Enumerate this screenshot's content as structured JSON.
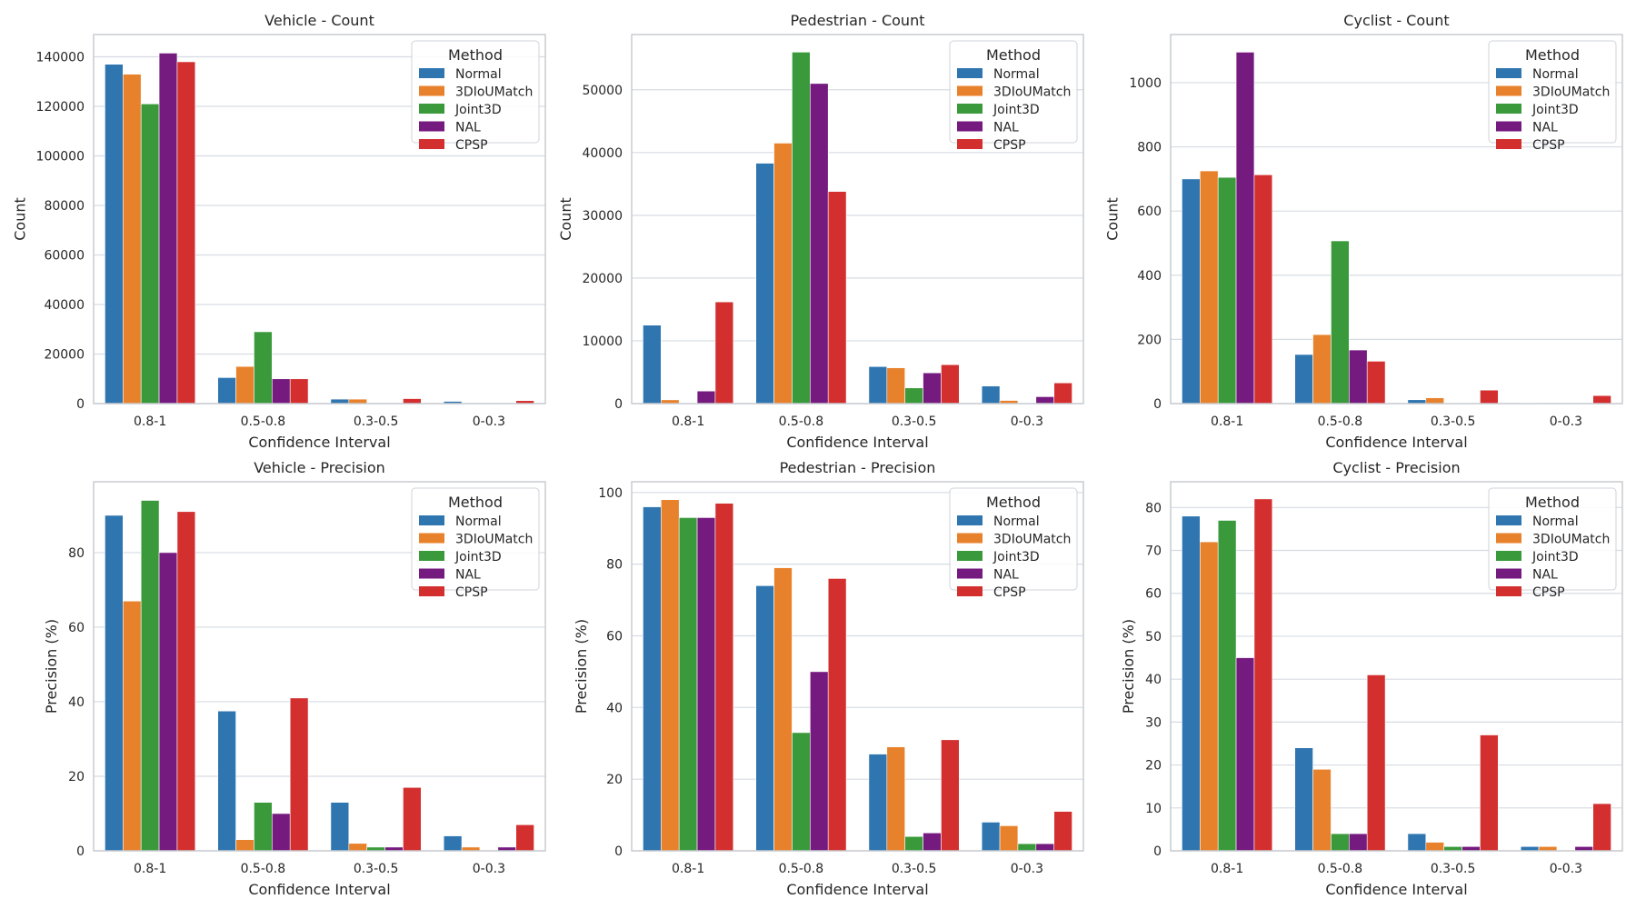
{
  "colors": {
    "Normal": "#2f75b0",
    "3DIoUMatch": "#e8812b",
    "Joint3D": "#3a9a3b",
    "NAL": "#751a7e",
    "CPSP": "#d32f2f",
    "grid": "#d6dce3",
    "frame": "#c8ccd1"
  },
  "chart_data": [
    {
      "type": "bar",
      "title": "Vehicle - Count",
      "xlabel": "Confidence Interval",
      "ylabel": "Count",
      "categories": [
        "0.8-1",
        "0.5-0.8",
        "0.3-0.5",
        "0-0.3"
      ],
      "ylim": [
        0,
        149000
      ],
      "yticks": [
        0,
        20000,
        40000,
        60000,
        80000,
        100000,
        120000,
        140000
      ],
      "legend_title": "Method",
      "legend_position": "top-right",
      "series": [
        {
          "name": "Normal",
          "values": [
            137000,
            10500,
            1800,
            900
          ]
        },
        {
          "name": "3DIoUMatch",
          "values": [
            133000,
            15000,
            1800,
            200
          ]
        },
        {
          "name": "Joint3D",
          "values": [
            121000,
            29000,
            200,
            100
          ]
        },
        {
          "name": "NAL",
          "values": [
            141500,
            10000,
            200,
            100
          ]
        },
        {
          "name": "CPSP",
          "values": [
            138000,
            10000,
            2000,
            1200
          ]
        }
      ]
    },
    {
      "type": "bar",
      "title": "Pedestrian - Count",
      "xlabel": "Confidence Interval",
      "ylabel": "Count",
      "categories": [
        "0.8-1",
        "0.5-0.8",
        "0.3-0.5",
        "0-0.3"
      ],
      "ylim": [
        0,
        58800
      ],
      "yticks": [
        0,
        10000,
        20000,
        30000,
        40000,
        50000
      ],
      "legend_title": "Method",
      "legend_position": "top-right",
      "series": [
        {
          "name": "Normal",
          "values": [
            12500,
            38300,
            5900,
            2800
          ]
        },
        {
          "name": "3DIoUMatch",
          "values": [
            600,
            41500,
            5700,
            500
          ]
        },
        {
          "name": "Joint3D",
          "values": [
            100,
            56000,
            2500,
            100
          ]
        },
        {
          "name": "NAL",
          "values": [
            2000,
            51000,
            4900,
            1100
          ]
        },
        {
          "name": "CPSP",
          "values": [
            16200,
            33800,
            6200,
            3300
          ]
        }
      ]
    },
    {
      "type": "bar",
      "title": "Cyclist - Count",
      "xlabel": "Confidence Interval",
      "ylabel": "Count",
      "categories": [
        "0.8-1",
        "0.5-0.8",
        "0.3-0.5",
        "0-0.3"
      ],
      "ylim": [
        0,
        1150
      ],
      "yticks": [
        0,
        200,
        400,
        600,
        800,
        1000
      ],
      "legend_title": "Method",
      "legend_position": "top-right",
      "series": [
        {
          "name": "Normal",
          "values": [
            700,
            153,
            12,
            2
          ]
        },
        {
          "name": "3DIoUMatch",
          "values": [
            725,
            215,
            18,
            1
          ]
        },
        {
          "name": "Joint3D",
          "values": [
            705,
            507,
            2,
            1
          ]
        },
        {
          "name": "NAL",
          "values": [
            1095,
            167,
            2,
            1
          ]
        },
        {
          "name": "CPSP",
          "values": [
            713,
            132,
            42,
            25
          ]
        }
      ]
    },
    {
      "type": "bar",
      "title": "Vehicle - Precision",
      "xlabel": "Confidence Interval",
      "ylabel": "Precision (%)",
      "categories": [
        "0.8-1",
        "0.5-0.8",
        "0.3-0.5",
        "0-0.3"
      ],
      "ylim": [
        0,
        99
      ],
      "yticks": [
        0,
        20,
        40,
        60,
        80
      ],
      "legend_title": "Method",
      "legend_position": "top-right",
      "series": [
        {
          "name": "Normal",
          "values": [
            90,
            37.5,
            13,
            4
          ]
        },
        {
          "name": "3DIoUMatch",
          "values": [
            67,
            3,
            2,
            1
          ]
        },
        {
          "name": "Joint3D",
          "values": [
            94,
            13,
            1,
            0
          ]
        },
        {
          "name": "NAL",
          "values": [
            80,
            10,
            1,
            1
          ]
        },
        {
          "name": "CPSP",
          "values": [
            91,
            41,
            17,
            7
          ]
        }
      ]
    },
    {
      "type": "bar",
      "title": "Pedestrian - Precision",
      "xlabel": "Confidence Interval",
      "ylabel": "Precision (%)",
      "categories": [
        "0.8-1",
        "0.5-0.8",
        "0.3-0.5",
        "0-0.3"
      ],
      "ylim": [
        0,
        103
      ],
      "yticks": [
        0,
        20,
        40,
        60,
        80,
        100
      ],
      "legend_title": "Method",
      "legend_position": "top-right",
      "series": [
        {
          "name": "Normal",
          "values": [
            96,
            74,
            27,
            8
          ]
        },
        {
          "name": "3DIoUMatch",
          "values": [
            98,
            79,
            29,
            7
          ]
        },
        {
          "name": "Joint3D",
          "values": [
            93,
            33,
            4,
            2
          ]
        },
        {
          "name": "NAL",
          "values": [
            93,
            50,
            5,
            2
          ]
        },
        {
          "name": "CPSP",
          "values": [
            97,
            76,
            31,
            11
          ]
        }
      ]
    },
    {
      "type": "bar",
      "title": "Cyclist - Precision",
      "xlabel": "Confidence Interval",
      "ylabel": "Precision (%)",
      "categories": [
        "0.8-1",
        "0.5-0.8",
        "0.3-0.5",
        "0-0.3"
      ],
      "ylim": [
        0,
        86
      ],
      "yticks": [
        0,
        10,
        20,
        30,
        40,
        50,
        60,
        70,
        80
      ],
      "legend_title": "Method",
      "legend_position": "top-right",
      "series": [
        {
          "name": "Normal",
          "values": [
            78,
            24,
            4,
            1
          ]
        },
        {
          "name": "3DIoUMatch",
          "values": [
            72,
            19,
            2,
            1
          ]
        },
        {
          "name": "Joint3D",
          "values": [
            77,
            4,
            1,
            0
          ]
        },
        {
          "name": "NAL",
          "values": [
            45,
            4,
            1,
            1
          ]
        },
        {
          "name": "CPSP",
          "values": [
            82,
            41,
            27,
            11
          ]
        }
      ]
    }
  ]
}
